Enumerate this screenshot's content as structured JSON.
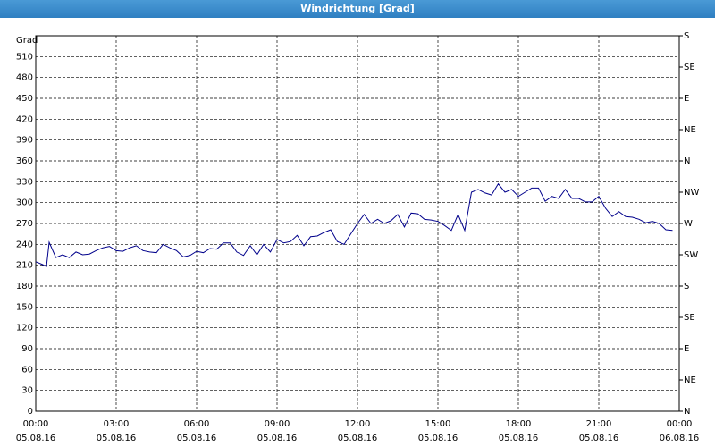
{
  "chart_data": {
    "type": "line",
    "title": "Windrichtung [Grad]",
    "ylabel": "Grad",
    "x": [
      0,
      0.25,
      0.4,
      0.5,
      0.75,
      1,
      1.25,
      1.5,
      1.75,
      2,
      2.25,
      2.5,
      2.75,
      3,
      3.25,
      3.5,
      3.75,
      4,
      4.25,
      4.5,
      4.75,
      5,
      5.25,
      5.5,
      5.75,
      6,
      6.25,
      6.5,
      6.75,
      7,
      7.25,
      7.5,
      7.75,
      8,
      8.25,
      8.5,
      8.75,
      9,
      9.25,
      9.5,
      9.75,
      10,
      10.25,
      10.5,
      10.75,
      11,
      11.25,
      11.5,
      11.75,
      12,
      12.25,
      12.5,
      12.75,
      13,
      13.25,
      13.5,
      13.75,
      14,
      14.25,
      14.5,
      14.75,
      15,
      15.25,
      15.5,
      15.75,
      16,
      16.25,
      16.5,
      16.75,
      17,
      17.25,
      17.5,
      17.75,
      18,
      18.25,
      18.5,
      18.75,
      19,
      19.25,
      19.5,
      19.75,
      20,
      20.25,
      20.5,
      20.75,
      21,
      21.25,
      21.5,
      21.75,
      22,
      22.25,
      22.5,
      22.75,
      23,
      23.25,
      23.5,
      23.75
    ],
    "series": [
      {
        "name": "Windrichtung",
        "color": "#00008b",
        "values": [
          215,
          211,
          208,
          243,
          221,
          225,
          221,
          229,
          225,
          226,
          231,
          235,
          237,
          231,
          230,
          235,
          238,
          231,
          229,
          228,
          240,
          235,
          231,
          222,
          224,
          230,
          228,
          234,
          233,
          242,
          242,
          229,
          224,
          238,
          225,
          240,
          229,
          247,
          242,
          244,
          253,
          238,
          251,
          252,
          257,
          261,
          244,
          240,
          255,
          270,
          283,
          270,
          276,
          270,
          274,
          283,
          265,
          285,
          284,
          276,
          275,
          273,
          267,
          260,
          283,
          260,
          315,
          319,
          314,
          311,
          327,
          315,
          319,
          309,
          315,
          321,
          321,
          302,
          309,
          306,
          319,
          306,
          306,
          301,
          301,
          309,
          292,
          280,
          287,
          280,
          279,
          276,
          271,
          273,
          270,
          261,
          260
        ]
      }
    ],
    "xlim": [
      0,
      24
    ],
    "xticks": [
      {
        "value": 0,
        "label": "00:00",
        "date": "05.08.16"
      },
      {
        "value": 3,
        "label": "03:00",
        "date": "05.08.16"
      },
      {
        "value": 6,
        "label": "06:00",
        "date": "05.08.16"
      },
      {
        "value": 9,
        "label": "09:00",
        "date": "05.08.16"
      },
      {
        "value": 12,
        "label": "12:00",
        "date": "05.08.16"
      },
      {
        "value": 15,
        "label": "15:00",
        "date": "05.08.16"
      },
      {
        "value": 18,
        "label": "18:00",
        "date": "05.08.16"
      },
      {
        "value": 21,
        "label": "21:00",
        "date": "05.08.16"
      },
      {
        "value": 24,
        "label": "00:00",
        "date": "06.08.16"
      }
    ],
    "ylim": [
      0,
      540
    ],
    "yticks": [
      0,
      30,
      60,
      90,
      120,
      150,
      180,
      210,
      240,
      270,
      300,
      330,
      360,
      390,
      420,
      450,
      480,
      510
    ],
    "y2lim": [
      0,
      540
    ],
    "y2ticks": [
      {
        "value": 0,
        "label": "N"
      },
      {
        "value": 45,
        "label": "NE"
      },
      {
        "value": 90,
        "label": "E"
      },
      {
        "value": 135,
        "label": "SE"
      },
      {
        "value": 180,
        "label": "S"
      },
      {
        "value": 225,
        "label": "SW"
      },
      {
        "value": 270,
        "label": "W"
      },
      {
        "value": 315,
        "label": "NW"
      },
      {
        "value": 360,
        "label": "N"
      },
      {
        "value": 405,
        "label": "NE"
      },
      {
        "value": 450,
        "label": "E"
      },
      {
        "value": 495,
        "label": "SE"
      },
      {
        "value": 540,
        "label": "S"
      }
    ],
    "grid": true
  }
}
